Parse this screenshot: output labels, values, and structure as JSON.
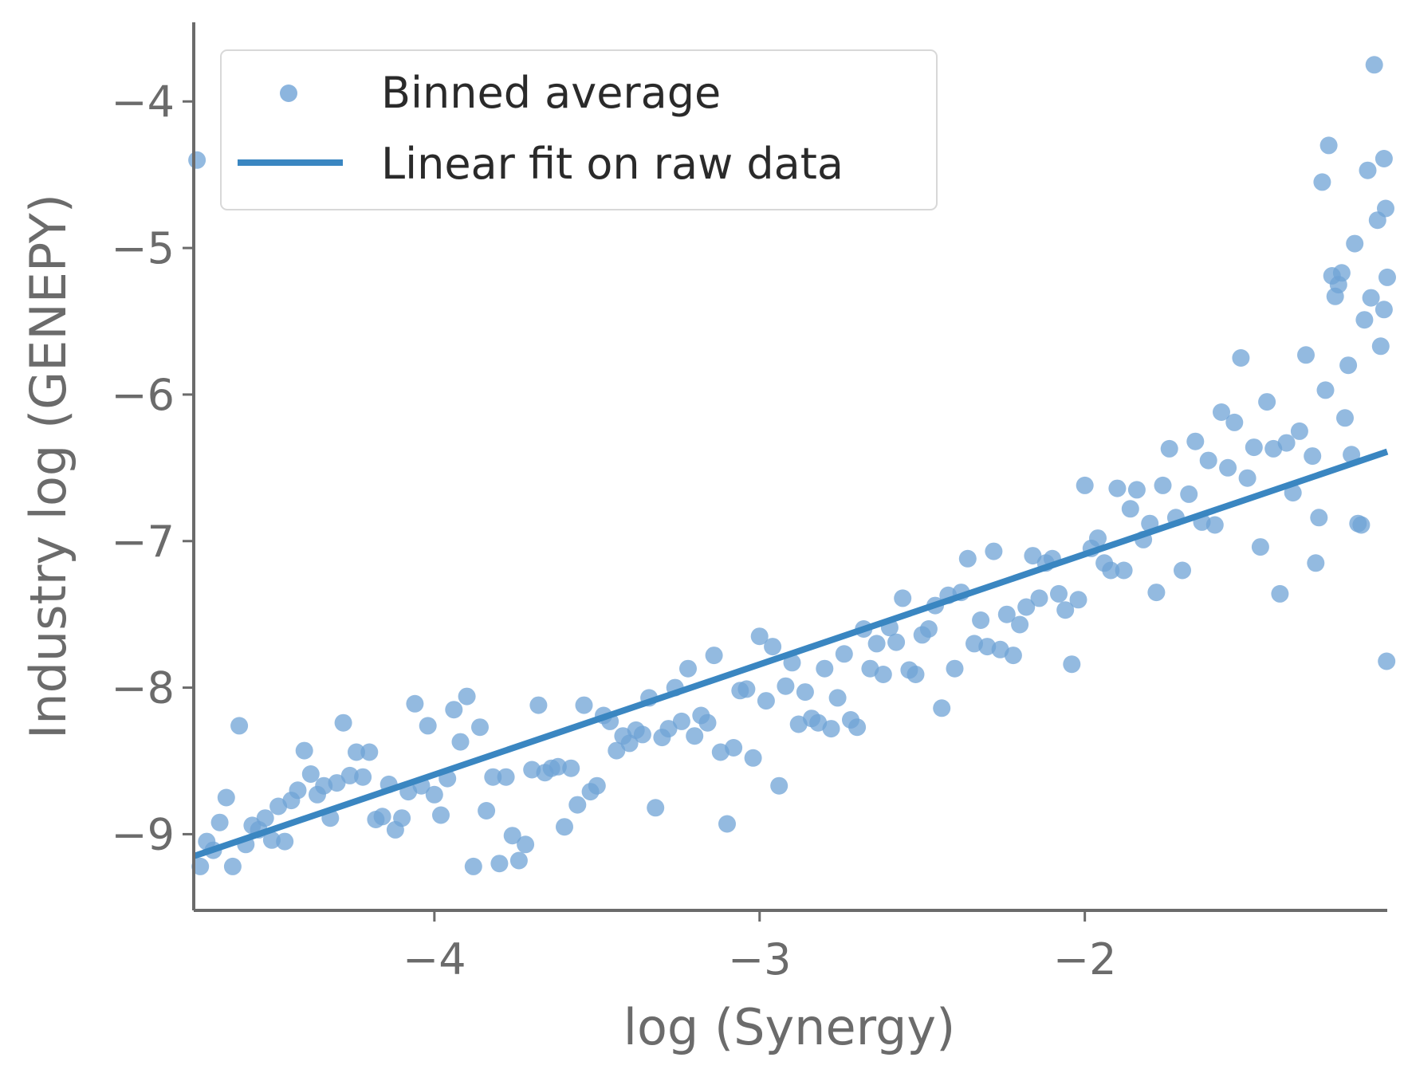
{
  "chart_data": {
    "type": "scatter",
    "xlabel": "log (Synergy)",
    "ylabel": "Industry log (GENEPY)",
    "xlim": [
      -4.74,
      -1.07
    ],
    "ylim": [
      -9.52,
      -3.46
    ],
    "xticks": [
      -4,
      -3,
      -2
    ],
    "yticks": [
      -9,
      -8,
      -7,
      -6,
      -5,
      -4
    ],
    "xtick_labels": [
      "−4",
      "−3",
      "−2"
    ],
    "ytick_labels": [
      "−9",
      "−8",
      "−7",
      "−6",
      "−5",
      "−4"
    ],
    "grid": false,
    "legend_position": "top-left",
    "colors": {
      "points": "#6fa3d6",
      "fit_line": "#3a86c1",
      "axis": "#6b6b6b"
    },
    "series": [
      {
        "name": "Binned average",
        "kind": "scatter",
        "points": [
          [
            -4.73,
            -4.4
          ],
          [
            -4.72,
            -9.22
          ],
          [
            -4.7,
            -9.05
          ],
          [
            -4.68,
            -9.11
          ],
          [
            -4.66,
            -8.92
          ],
          [
            -4.64,
            -8.75
          ],
          [
            -4.62,
            -9.22
          ],
          [
            -4.6,
            -8.26
          ],
          [
            -4.58,
            -9.07
          ],
          [
            -4.56,
            -8.94
          ],
          [
            -4.54,
            -8.97
          ],
          [
            -4.52,
            -8.89
          ],
          [
            -4.5,
            -9.04
          ],
          [
            -4.48,
            -8.81
          ],
          [
            -4.46,
            -9.05
          ],
          [
            -4.44,
            -8.77
          ],
          [
            -4.42,
            -8.7
          ],
          [
            -4.4,
            -8.43
          ],
          [
            -4.38,
            -8.59
          ],
          [
            -4.36,
            -8.73
          ],
          [
            -4.34,
            -8.67
          ],
          [
            -4.32,
            -8.89
          ],
          [
            -4.3,
            -8.65
          ],
          [
            -4.28,
            -8.24
          ],
          [
            -4.26,
            -8.6
          ],
          [
            -4.24,
            -8.44
          ],
          [
            -4.22,
            -8.61
          ],
          [
            -4.2,
            -8.44
          ],
          [
            -4.18,
            -8.9
          ],
          [
            -4.16,
            -8.88
          ],
          [
            -4.14,
            -8.66
          ],
          [
            -4.12,
            -8.97
          ],
          [
            -4.1,
            -8.89
          ],
          [
            -4.08,
            -8.71
          ],
          [
            -4.06,
            -8.11
          ],
          [
            -4.04,
            -8.67
          ],
          [
            -4.02,
            -8.26
          ],
          [
            -4.0,
            -8.73
          ],
          [
            -3.98,
            -8.87
          ],
          [
            -3.96,
            -8.62
          ],
          [
            -3.94,
            -8.15
          ],
          [
            -3.92,
            -8.37
          ],
          [
            -3.9,
            -8.06
          ],
          [
            -3.88,
            -9.22
          ],
          [
            -3.86,
            -8.27
          ],
          [
            -3.84,
            -8.84
          ],
          [
            -3.82,
            -8.61
          ],
          [
            -3.8,
            -9.2
          ],
          [
            -3.78,
            -8.61
          ],
          [
            -3.76,
            -9.01
          ],
          [
            -3.74,
            -9.18
          ],
          [
            -3.72,
            -9.07
          ],
          [
            -3.7,
            -8.56
          ],
          [
            -3.68,
            -8.12
          ],
          [
            -3.66,
            -8.58
          ],
          [
            -3.64,
            -8.55
          ],
          [
            -3.62,
            -8.54
          ],
          [
            -3.6,
            -8.95
          ],
          [
            -3.58,
            -8.55
          ],
          [
            -3.56,
            -8.8
          ],
          [
            -3.54,
            -8.12
          ],
          [
            -3.52,
            -8.71
          ],
          [
            -3.5,
            -8.67
          ],
          [
            -3.48,
            -8.19
          ],
          [
            -3.46,
            -8.23
          ],
          [
            -3.44,
            -8.43
          ],
          [
            -3.42,
            -8.33
          ],
          [
            -3.4,
            -8.38
          ],
          [
            -3.38,
            -8.29
          ],
          [
            -3.36,
            -8.32
          ],
          [
            -3.34,
            -8.07
          ],
          [
            -3.32,
            -8.82
          ],
          [
            -3.3,
            -8.34
          ],
          [
            -3.28,
            -8.28
          ],
          [
            -3.26,
            -8.0
          ],
          [
            -3.24,
            -8.23
          ],
          [
            -3.22,
            -7.87
          ],
          [
            -3.2,
            -8.33
          ],
          [
            -3.18,
            -8.19
          ],
          [
            -3.16,
            -8.24
          ],
          [
            -3.14,
            -7.78
          ],
          [
            -3.12,
            -8.44
          ],
          [
            -3.1,
            -8.93
          ],
          [
            -3.08,
            -8.41
          ],
          [
            -3.06,
            -8.02
          ],
          [
            -3.04,
            -8.01
          ],
          [
            -3.02,
            -8.48
          ],
          [
            -3.0,
            -7.65
          ],
          [
            -2.98,
            -8.09
          ],
          [
            -2.96,
            -7.72
          ],
          [
            -2.94,
            -8.67
          ],
          [
            -2.92,
            -7.99
          ],
          [
            -2.9,
            -7.83
          ],
          [
            -2.88,
            -8.25
          ],
          [
            -2.86,
            -8.03
          ],
          [
            -2.84,
            -8.21
          ],
          [
            -2.82,
            -8.24
          ],
          [
            -2.8,
            -7.87
          ],
          [
            -2.78,
            -8.28
          ],
          [
            -2.76,
            -8.07
          ],
          [
            -2.74,
            -7.77
          ],
          [
            -2.72,
            -8.22
          ],
          [
            -2.7,
            -8.27
          ],
          [
            -2.68,
            -7.6
          ],
          [
            -2.66,
            -7.87
          ],
          [
            -2.64,
            -7.7
          ],
          [
            -2.62,
            -7.91
          ],
          [
            -2.6,
            -7.59
          ],
          [
            -2.58,
            -7.69
          ],
          [
            -2.56,
            -7.39
          ],
          [
            -2.54,
            -7.88
          ],
          [
            -2.52,
            -7.91
          ],
          [
            -2.5,
            -7.64
          ],
          [
            -2.48,
            -7.6
          ],
          [
            -2.46,
            -7.44
          ],
          [
            -2.44,
            -8.14
          ],
          [
            -2.42,
            -7.37
          ],
          [
            -2.4,
            -7.87
          ],
          [
            -2.38,
            -7.35
          ],
          [
            -2.36,
            -7.12
          ],
          [
            -2.34,
            -7.7
          ],
          [
            -2.32,
            -7.54
          ],
          [
            -2.3,
            -7.72
          ],
          [
            -2.28,
            -7.07
          ],
          [
            -2.26,
            -7.74
          ],
          [
            -2.24,
            -7.5
          ],
          [
            -2.22,
            -7.78
          ],
          [
            -2.2,
            -7.57
          ],
          [
            -2.18,
            -7.45
          ],
          [
            -2.16,
            -7.1
          ],
          [
            -2.14,
            -7.39
          ],
          [
            -2.12,
            -7.15
          ],
          [
            -2.1,
            -7.12
          ],
          [
            -2.08,
            -7.36
          ],
          [
            -2.06,
            -7.47
          ],
          [
            -2.04,
            -7.84
          ],
          [
            -2.02,
            -7.4
          ],
          [
            -2.0,
            -6.62
          ],
          [
            -1.98,
            -7.05
          ],
          [
            -1.96,
            -6.98
          ],
          [
            -1.94,
            -7.15
          ],
          [
            -1.92,
            -7.2
          ],
          [
            -1.9,
            -6.64
          ],
          [
            -1.88,
            -7.2
          ],
          [
            -1.86,
            -6.78
          ],
          [
            -1.84,
            -6.65
          ],
          [
            -1.82,
            -6.99
          ],
          [
            -1.8,
            -6.88
          ],
          [
            -1.78,
            -7.35
          ],
          [
            -1.76,
            -6.62
          ],
          [
            -1.74,
            -6.37
          ],
          [
            -1.72,
            -6.84
          ],
          [
            -1.7,
            -7.2
          ],
          [
            -1.68,
            -6.68
          ],
          [
            -1.66,
            -6.32
          ],
          [
            -1.64,
            -6.87
          ],
          [
            -1.62,
            -6.45
          ],
          [
            -1.6,
            -6.89
          ],
          [
            -1.58,
            -6.12
          ],
          [
            -1.56,
            -6.5
          ],
          [
            -1.54,
            -6.19
          ],
          [
            -1.52,
            -5.75
          ],
          [
            -1.5,
            -6.57
          ],
          [
            -1.48,
            -6.36
          ],
          [
            -1.46,
            -7.04
          ],
          [
            -1.44,
            -6.05
          ],
          [
            -1.42,
            -6.37
          ],
          [
            -1.4,
            -7.36
          ],
          [
            -1.38,
            -6.33
          ],
          [
            -1.36,
            -6.67
          ],
          [
            -1.34,
            -6.25
          ],
          [
            -1.32,
            -5.73
          ],
          [
            -1.3,
            -6.42
          ],
          [
            -1.28,
            -6.84
          ],
          [
            -1.26,
            -5.97
          ],
          [
            -1.24,
            -5.19
          ],
          [
            -1.22,
            -5.25
          ],
          [
            -1.2,
            -6.16
          ],
          [
            -1.18,
            -6.41
          ],
          [
            -1.16,
            -6.88
          ],
          [
            -1.14,
            -5.49
          ],
          [
            -1.12,
            -5.34
          ],
          [
            -1.1,
            -4.81
          ],
          [
            -1.08,
            -5.42
          ]
        ]
      },
      {
        "name": "Linear fit on raw data",
        "kind": "line",
        "points": [
          [
            -4.74,
            -9.15
          ],
          [
            -1.07,
            -6.39
          ]
        ]
      }
    ],
    "extra_points": [
      [
        -1.29,
        -7.15
      ],
      [
        -1.27,
        -4.55
      ],
      [
        -1.25,
        -4.3
      ],
      [
        -1.23,
        -5.33
      ],
      [
        -1.21,
        -5.17
      ],
      [
        -1.19,
        -5.8
      ],
      [
        -1.17,
        -4.97
      ],
      [
        -1.15,
        -6.89
      ],
      [
        -1.13,
        -4.47
      ],
      [
        -1.11,
        -3.75
      ],
      [
        -1.09,
        -5.67
      ],
      [
        -1.08,
        -4.39
      ],
      [
        -1.075,
        -4.73
      ],
      [
        -1.072,
        -7.82
      ],
      [
        -1.07,
        -5.2
      ]
    ]
  }
}
